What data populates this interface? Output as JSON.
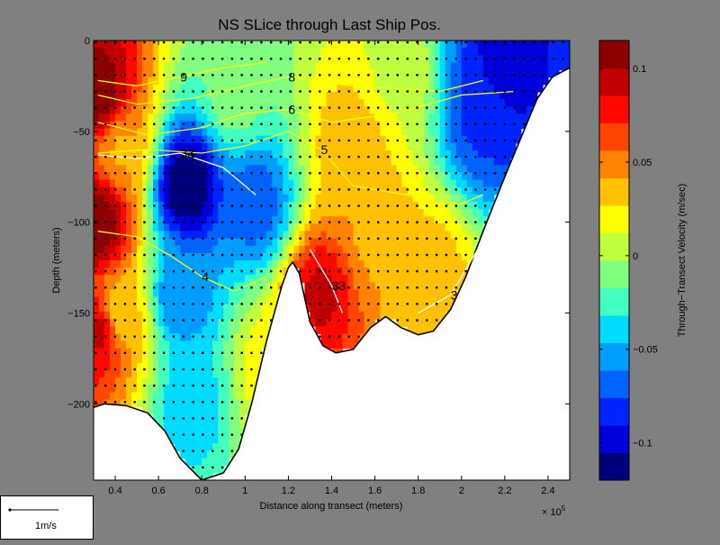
{
  "chart_data": {
    "type": "heatmap",
    "title": "NS SLice through Last Ship Pos.",
    "xlabel": "Distance along transect (meters)",
    "ylabel": "Depth (meters)",
    "x_multiplier": "× 10",
    "x_multiplier_exp": "5",
    "xlim": [
      0.3,
      2.5
    ],
    "ylim": [
      -242,
      0
    ],
    "xticks": [
      {
        "v": 0.4,
        "label": "0.4"
      },
      {
        "v": 0.6,
        "label": "0.6"
      },
      {
        "v": 0.8,
        "label": "0.8"
      },
      {
        "v": 1.0,
        "label": "1"
      },
      {
        "v": 1.2,
        "label": "1.2"
      },
      {
        "v": 1.4,
        "label": "1.4"
      },
      {
        "v": 1.6,
        "label": "1.6"
      },
      {
        "v": 1.8,
        "label": "1.8"
      },
      {
        "v": 2.0,
        "label": "2"
      },
      {
        "v": 2.2,
        "label": "2.2"
      },
      {
        "v": 2.4,
        "label": "2.4"
      }
    ],
    "yticks": [
      {
        "v": 0,
        "label": "0"
      },
      {
        "v": -50,
        "label": "−50"
      },
      {
        "v": -100,
        "label": "−100"
      },
      {
        "v": -150,
        "label": "−150"
      },
      {
        "v": -200,
        "label": "−200"
      }
    ],
    "bottom_profile": [
      [
        0.3,
        -202
      ],
      [
        0.35,
        -200
      ],
      [
        0.45,
        -201
      ],
      [
        0.55,
        -205
      ],
      [
        0.63,
        -215
      ],
      [
        0.7,
        -230
      ],
      [
        0.8,
        -242
      ],
      [
        0.9,
        -238
      ],
      [
        0.97,
        -225
      ],
      [
        1.03,
        -200
      ],
      [
        1.1,
        -165
      ],
      [
        1.17,
        -135
      ],
      [
        1.2,
        -125
      ],
      [
        1.22,
        -122
      ],
      [
        1.25,
        -128
      ],
      [
        1.3,
        -155
      ],
      [
        1.36,
        -168
      ],
      [
        1.42,
        -172
      ],
      [
        1.5,
        -170
      ],
      [
        1.58,
        -158
      ],
      [
        1.65,
        -152
      ],
      [
        1.72,
        -158
      ],
      [
        1.8,
        -162
      ],
      [
        1.87,
        -160
      ],
      [
        1.95,
        -148
      ],
      [
        2.02,
        -130
      ],
      [
        2.1,
        -105
      ],
      [
        2.2,
        -75
      ],
      [
        2.28,
        -52
      ],
      [
        2.35,
        -32
      ],
      [
        2.42,
        -20
      ],
      [
        2.5,
        -15
      ]
    ],
    "colorbar": {
      "label": "Through−Transect Velocity (m/sec)",
      "vmin": -0.12,
      "vmax": 0.115,
      "ticks": [
        {
          "v": 0.1,
          "label": "0.1"
        },
        {
          "v": 0.05,
          "label": "0.05"
        },
        {
          "v": 0,
          "label": "0"
        },
        {
          "v": -0.05,
          "label": "−0.05"
        },
        {
          "v": -0.1,
          "label": "−0.1"
        }
      ],
      "colors": [
        "#00007f",
        "#0000d8",
        "#0024ff",
        "#0062ff",
        "#009fff",
        "#00dcff",
        "#40ffbf",
        "#80ff80",
        "#bfff40",
        "#ffff00",
        "#ffc100",
        "#ff8300",
        "#ff4500",
        "#ff0800",
        "#c10000",
        "#8c0000"
      ]
    },
    "velocity_field": [
      {
        "x": 0.33,
        "y": -30,
        "v": 0.11
      },
      {
        "x": 0.33,
        "y": -100,
        "v": 0.11
      },
      {
        "x": 0.33,
        "y": -160,
        "v": 0.09
      },
      {
        "x": 0.42,
        "y": -60,
        "v": 0.04
      },
      {
        "x": 0.42,
        "y": -150,
        "v": 0.03
      },
      {
        "x": 0.73,
        "y": -80,
        "v": -0.12
      },
      {
        "x": 0.7,
        "y": -140,
        "v": -0.06
      },
      {
        "x": 0.75,
        "y": -200,
        "v": -0.04
      },
      {
        "x": 1.12,
        "y": -180,
        "v": 0.02
      },
      {
        "x": 1.05,
        "y": -90,
        "v": -0.07
      },
      {
        "x": 0.95,
        "y": -30,
        "v": -0.01
      },
      {
        "x": 1.35,
        "y": -140,
        "v": 0.09
      },
      {
        "x": 1.5,
        "y": -60,
        "v": 0.04
      },
      {
        "x": 1.6,
        "y": -110,
        "v": 0.04
      },
      {
        "x": 1.85,
        "y": -130,
        "v": 0.035
      },
      {
        "x": 2.1,
        "y": -40,
        "v": -0.08
      },
      {
        "x": 2.2,
        "y": -15,
        "v": -0.1
      },
      {
        "x": 1.7,
        "y": -20,
        "v": 0.01
      }
    ],
    "contours": [
      {
        "label": "9",
        "color": "#ffff00",
        "pts": [
          [
            0.32,
            -22
          ],
          [
            0.5,
            -25
          ],
          [
            0.7,
            -20
          ],
          [
            0.9,
            -15
          ],
          [
            1.1,
            -12
          ]
        ]
      },
      {
        "label": "8",
        "color": "#ffff00",
        "pts": [
          [
            0.32,
            -30
          ],
          [
            0.5,
            -35
          ],
          [
            0.75,
            -32
          ],
          [
            1.0,
            -25
          ],
          [
            1.2,
            -20
          ],
          [
            1.5,
            -25
          ],
          [
            1.9,
            -28
          ],
          [
            2.1,
            -22
          ]
        ]
      },
      {
        "label": "6",
        "color": "#ffff00",
        "pts": [
          [
            0.32,
            -45
          ],
          [
            0.55,
            -52
          ],
          [
            0.8,
            -48
          ],
          [
            1.0,
            -40
          ],
          [
            1.2,
            -38
          ],
          [
            1.4,
            -45
          ],
          [
            1.7,
            -40
          ],
          [
            2.0,
            -30
          ],
          [
            2.25,
            -28
          ]
        ]
      },
      {
        "label": "5",
        "color": "#ffff00",
        "pts": [
          [
            0.32,
            -62
          ],
          [
            0.55,
            -60
          ],
          [
            0.8,
            -62
          ],
          [
            1.0,
            -58
          ],
          [
            1.2,
            -50
          ],
          [
            1.35,
            -60
          ],
          [
            1.5,
            -80
          ],
          [
            1.75,
            -85
          ],
          [
            1.95,
            -92
          ],
          [
            2.1,
            -85
          ]
        ]
      },
      {
        "label": "4",
        "color": "#ffff00",
        "pts": [
          [
            0.32,
            -105
          ],
          [
            0.5,
            -108
          ],
          [
            0.65,
            -118
          ],
          [
            0.8,
            -130
          ],
          [
            0.95,
            -138
          ],
          [
            1.1,
            -130
          ]
        ]
      },
      {
        "label": "33",
        "color": "#ffffff",
        "pts": [
          [
            0.32,
            -63
          ],
          [
            0.5,
            -65
          ],
          [
            0.7,
            -62
          ],
          [
            0.9,
            -70
          ],
          [
            1.05,
            -85
          ]
        ]
      },
      {
        "label": "3",
        "color": "#ffffff",
        "pts": [
          [
            1.8,
            -150
          ],
          [
            1.95,
            -140
          ],
          [
            2.1,
            -110
          ]
        ]
      },
      {
        "label": "33",
        "color": "#ffffff",
        "pts": [
          [
            1.3,
            -115
          ],
          [
            1.4,
            -135
          ],
          [
            1.45,
            -150
          ]
        ]
      }
    ]
  },
  "scale_label": "1m/s"
}
